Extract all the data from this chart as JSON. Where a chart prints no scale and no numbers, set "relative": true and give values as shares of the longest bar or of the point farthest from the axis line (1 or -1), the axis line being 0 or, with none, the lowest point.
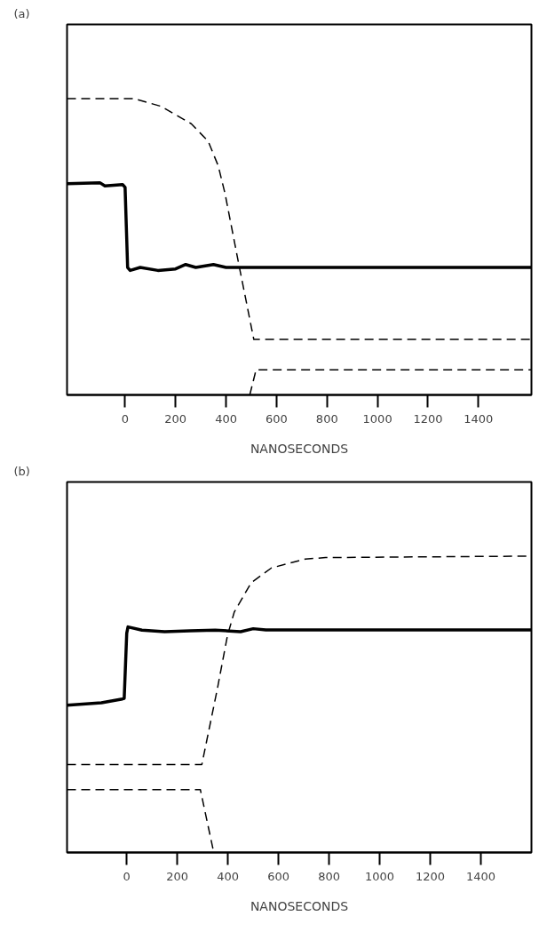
{
  "chart_data": [
    {
      "type": "line",
      "title": "(a)",
      "xlabel": "NANOSECONDS",
      "relative": true,
      "xlim": [
        -230,
        1610
      ],
      "xticks": [
        0,
        200,
        400,
        600,
        800,
        1000,
        1200,
        1400
      ],
      "grid": false,
      "series": [
        {
          "color": "#000000",
          "line_style": "solid",
          "x": [
            -230,
            -100,
            -80,
            -10,
            0,
            10,
            20,
            60,
            130,
            200,
            240,
            280,
            350,
            400,
            1610
          ],
          "values": [
            0.713,
            0.716,
            0.705,
            0.71,
            0.7,
            0.43,
            0.42,
            0.43,
            0.42,
            0.425,
            0.44,
            0.43,
            0.44,
            0.43,
            0.43
          ]
        },
        {
          "color": "#000000",
          "line_style": "dashed",
          "x": [
            -230,
            34,
            141,
            262,
            329,
            369,
            396,
            450,
            510,
            1610
          ],
          "values": [
            1.0,
            1.0,
            0.974,
            0.915,
            0.856,
            0.773,
            0.679,
            0.443,
            0.187,
            0.187
          ]
        },
        {
          "color": "#000000",
          "line_style": "dashed",
          "x": [
            494,
            519,
            1610
          ],
          "values": [
            0,
            0.085,
            0.085
          ]
        }
      ]
    },
    {
      "type": "line",
      "title": "(b)",
      "xlabel": "NANOSECONDS",
      "relative": true,
      "xlim": [
        -236,
        1600
      ],
      "xticks": [
        0,
        200,
        400,
        600,
        800,
        1000,
        1200,
        1400
      ],
      "grid": false,
      "series": [
        {
          "color": "#000000",
          "line_style": "solid",
          "x": [
            -236,
            -100,
            -17,
            -10,
            0,
            5,
            60,
            150,
            250,
            350,
            450,
            500,
            550,
            1600
          ],
          "values": [
            0.497,
            0.505,
            0.518,
            0.52,
            0.74,
            0.761,
            0.75,
            0.745,
            0.748,
            0.75,
            0.745,
            0.755,
            0.751,
            0.751
          ]
        },
        {
          "color": "#000000",
          "line_style": "dashed",
          "x": [
            -236,
            297,
            358,
            398,
            425,
            492,
            572,
            706,
            786,
            1600
          ],
          "values": [
            0.297,
            0.297,
            0.551,
            0.731,
            0.811,
            0.91,
            0.96,
            0.99,
            0.995,
            1.0
          ]
        },
        {
          "color": "#000000",
          "line_style": "dashed",
          "x": [
            -236,
            291,
            344
          ],
          "values": [
            0.212,
            0.212,
            0
          ]
        }
      ]
    }
  ]
}
